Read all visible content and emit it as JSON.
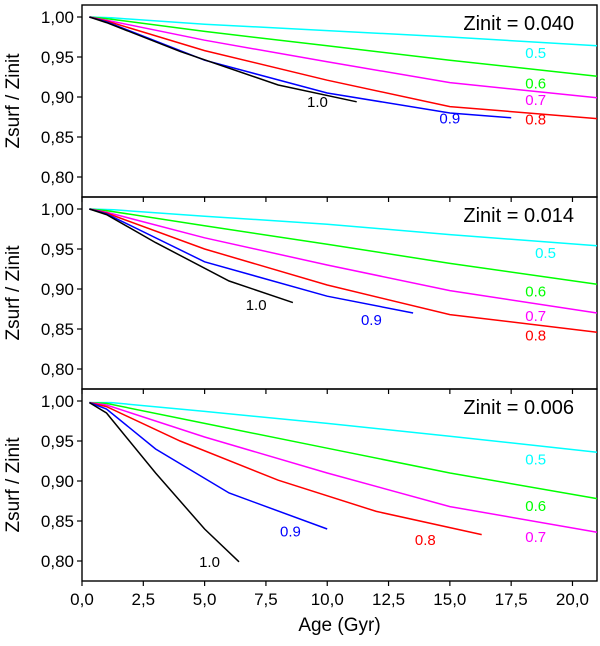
{
  "chart_data": {
    "type": "line",
    "xlabel": "Age (Gyr)",
    "ylabel": "Zsurf / Zinit",
    "xlim": [
      0,
      21
    ],
    "ylim": [
      0.775,
      1.015
    ],
    "x_ticks": [
      0,
      2.5,
      5,
      7.5,
      10,
      12.5,
      15,
      17.5,
      20
    ],
    "x_tick_labels": [
      "0,0",
      "2,5",
      "5,0",
      "7,5",
      "10,0",
      "12,5",
      "15,0",
      "17,5",
      "20,0"
    ],
    "y_ticks": [
      0.8,
      0.85,
      0.9,
      0.95,
      1.0
    ],
    "y_tick_labels": [
      "0,80",
      "0,85",
      "0,90",
      "0,95",
      "1,00"
    ],
    "colors": {
      "0.5": "#00ffff",
      "0.6": "#00ff00",
      "0.7": "#ff00ff",
      "0.8": "#ff0000",
      "0.9": "#0000ff",
      "1.0": "#000000"
    },
    "panels": [
      {
        "title": "Zinit = 0.040",
        "series": [
          {
            "name": "0.5",
            "label": "0.5",
            "points": [
              [
                0.3,
                1.0
              ],
              [
                1.2,
                0.999
              ],
              [
                5,
                0.991
              ],
              [
                10,
                0.983
              ],
              [
                15,
                0.975
              ],
              [
                21,
                0.964
              ]
            ],
            "label_pos": [
              18.5,
              0.955
            ]
          },
          {
            "name": "0.6",
            "label": "0.6",
            "points": [
              [
                0.3,
                1.0
              ],
              [
                1.0,
                0.998
              ],
              [
                5,
                0.982
              ],
              [
                10,
                0.964
              ],
              [
                15,
                0.946
              ],
              [
                21,
                0.926
              ]
            ],
            "label_pos": [
              18.5,
              0.917
            ]
          },
          {
            "name": "0.7",
            "label": "0.7",
            "points": [
              [
                0.3,
                1.0
              ],
              [
                1.0,
                0.996
              ],
              [
                5,
                0.971
              ],
              [
                10,
                0.944
              ],
              [
                15,
                0.918
              ],
              [
                21,
                0.899
              ]
            ],
            "label_pos": [
              18.5,
              0.896
            ]
          },
          {
            "name": "0.8",
            "label": "0.8",
            "points": [
              [
                0.3,
                1.0
              ],
              [
                1.0,
                0.995
              ],
              [
                5,
                0.958
              ],
              [
                10,
                0.921
              ],
              [
                15,
                0.888
              ],
              [
                21,
                0.873
              ]
            ],
            "label_pos": [
              18.5,
              0.872
            ]
          },
          {
            "name": "0.9",
            "label": "0.9",
            "points": [
              [
                0.3,
                1.0
              ],
              [
                1.0,
                0.994
              ],
              [
                5,
                0.946
              ],
              [
                10,
                0.905
              ],
              [
                15,
                0.88
              ],
              [
                17.5,
                0.874
              ]
            ],
            "label_pos": [
              15.0,
              0.873
            ]
          },
          {
            "name": "1.0",
            "label": "1.0",
            "points": [
              [
                0.3,
                1.0
              ],
              [
                1.0,
                0.993
              ],
              [
                4,
                0.957
              ],
              [
                8,
                0.915
              ],
              [
                11.2,
                0.894
              ]
            ],
            "label_pos": [
              9.6,
              0.894
            ]
          }
        ]
      },
      {
        "title": "Zinit = 0.014",
        "series": [
          {
            "name": "0.5",
            "label": "0.5",
            "points": [
              [
                0.3,
                1.0
              ],
              [
                1.3,
                0.999
              ],
              [
                5,
                0.991
              ],
              [
                10,
                0.981
              ],
              [
                15,
                0.968
              ],
              [
                21,
                0.954
              ]
            ],
            "label_pos": [
              18.9,
              0.945
            ]
          },
          {
            "name": "0.6",
            "label": "0.6",
            "points": [
              [
                0.3,
                1.0
              ],
              [
                1.0,
                0.998
              ],
              [
                5,
                0.979
              ],
              [
                10,
                0.956
              ],
              [
                15,
                0.932
              ],
              [
                21,
                0.906
              ]
            ],
            "label_pos": [
              18.5,
              0.897
            ]
          },
          {
            "name": "0.7",
            "label": "0.7",
            "points": [
              [
                0.3,
                1.0
              ],
              [
                1.0,
                0.996
              ],
              [
                5,
                0.964
              ],
              [
                10,
                0.93
              ],
              [
                15,
                0.898
              ],
              [
                21,
                0.87
              ]
            ],
            "label_pos": [
              18.5,
              0.866
            ]
          },
          {
            "name": "0.8",
            "label": "0.8",
            "points": [
              [
                0.3,
                1.0
              ],
              [
                1.0,
                0.995
              ],
              [
                5,
                0.95
              ],
              [
                10,
                0.905
              ],
              [
                15,
                0.868
              ],
              [
                21,
                0.846
              ]
            ],
            "label_pos": [
              18.5,
              0.842
            ]
          },
          {
            "name": "0.9",
            "label": "0.9",
            "points": [
              [
                0.3,
                1.0
              ],
              [
                1.0,
                0.994
              ],
              [
                5,
                0.934
              ],
              [
                10,
                0.891
              ],
              [
                13.5,
                0.87
              ]
            ],
            "label_pos": [
              11.8,
              0.861
            ]
          },
          {
            "name": "1.0",
            "label": "1.0",
            "points": [
              [
                0.3,
                1.0
              ],
              [
                1.0,
                0.993
              ],
              [
                3,
                0.958
              ],
              [
                6,
                0.91
              ],
              [
                8.6,
                0.883
              ]
            ],
            "label_pos": [
              7.1,
              0.88
            ]
          }
        ]
      },
      {
        "title": "Zinit = 0.006",
        "series": [
          {
            "name": "0.5",
            "label": "0.5",
            "points": [
              [
                0.3,
                0.998
              ],
              [
                1.2,
                0.998
              ],
              [
                5,
                0.987
              ],
              [
                10,
                0.972
              ],
              [
                15,
                0.956
              ],
              [
                21,
                0.936
              ]
            ],
            "label_pos": [
              18.5,
              0.927
            ]
          },
          {
            "name": "0.6",
            "label": "0.6",
            "points": [
              [
                0.3,
                0.998
              ],
              [
                1.0,
                0.997
              ],
              [
                5,
                0.972
              ],
              [
                10,
                0.941
              ],
              [
                15,
                0.91
              ],
              [
                21,
                0.878
              ]
            ],
            "label_pos": [
              18.5,
              0.869
            ]
          },
          {
            "name": "0.7",
            "label": "0.7",
            "points": [
              [
                0.3,
                0.998
              ],
              [
                1.0,
                0.995
              ],
              [
                5,
                0.955
              ],
              [
                10,
                0.91
              ],
              [
                15,
                0.868
              ],
              [
                21,
                0.836
              ]
            ],
            "label_pos": [
              18.5,
              0.83
            ]
          },
          {
            "name": "0.8",
            "label": "0.8",
            "points": [
              [
                0.3,
                0.998
              ],
              [
                1.0,
                0.993
              ],
              [
                4,
                0.95
              ],
              [
                8,
                0.901
              ],
              [
                12,
                0.862
              ],
              [
                16.3,
                0.833
              ]
            ],
            "label_pos": [
              14.0,
              0.826
            ]
          },
          {
            "name": "0.9",
            "label": "0.9",
            "points": [
              [
                0.3,
                0.998
              ],
              [
                1.0,
                0.99
              ],
              [
                3,
                0.94
              ],
              [
                6,
                0.885
              ],
              [
                10,
                0.84
              ]
            ],
            "label_pos": [
              8.5,
              0.837
            ]
          },
          {
            "name": "1.0",
            "label": "1.0",
            "points": [
              [
                0.3,
                0.998
              ],
              [
                1.0,
                0.985
              ],
              [
                3,
                0.91
              ],
              [
                5,
                0.84
              ],
              [
                6.4,
                0.799
              ]
            ],
            "label_pos": [
              5.2,
              0.799
            ]
          }
        ]
      }
    ]
  }
}
